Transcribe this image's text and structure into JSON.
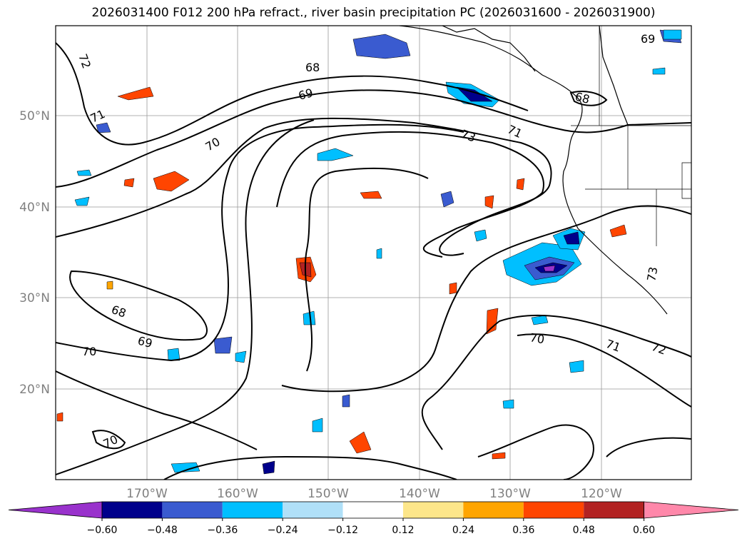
{
  "title": "2026031400 F012 200 hPa refract., river basin precipitation PC (2026031600 - 2026031900)",
  "map": {
    "lat_labels": [
      "50°N",
      "40°N",
      "30°N",
      "20°N"
    ],
    "lon_labels": [
      "170°W",
      "160°W",
      "150°W",
      "140°W",
      "130°W",
      "120°W"
    ],
    "contour_labels": [
      "72",
      "71",
      "70",
      "69",
      "68",
      "73",
      "71",
      "69",
      "68",
      "70",
      "68",
      "69",
      "70",
      "70",
      "71",
      "72",
      "73"
    ]
  },
  "colorbar": {
    "ticks": [
      "−0.60",
      "−0.48",
      "−0.36",
      "−0.24",
      "−0.12",
      "0.12",
      "0.24",
      "0.36",
      "0.48",
      "0.60"
    ],
    "colors": [
      "#9932cc",
      "#00008b",
      "#3a5bd0",
      "#00bfff",
      "#b0e0f8",
      "#ffffff",
      "#fde68a",
      "#ffa500",
      "#ff4500",
      "#b22222",
      "#ff88aa"
    ]
  }
}
